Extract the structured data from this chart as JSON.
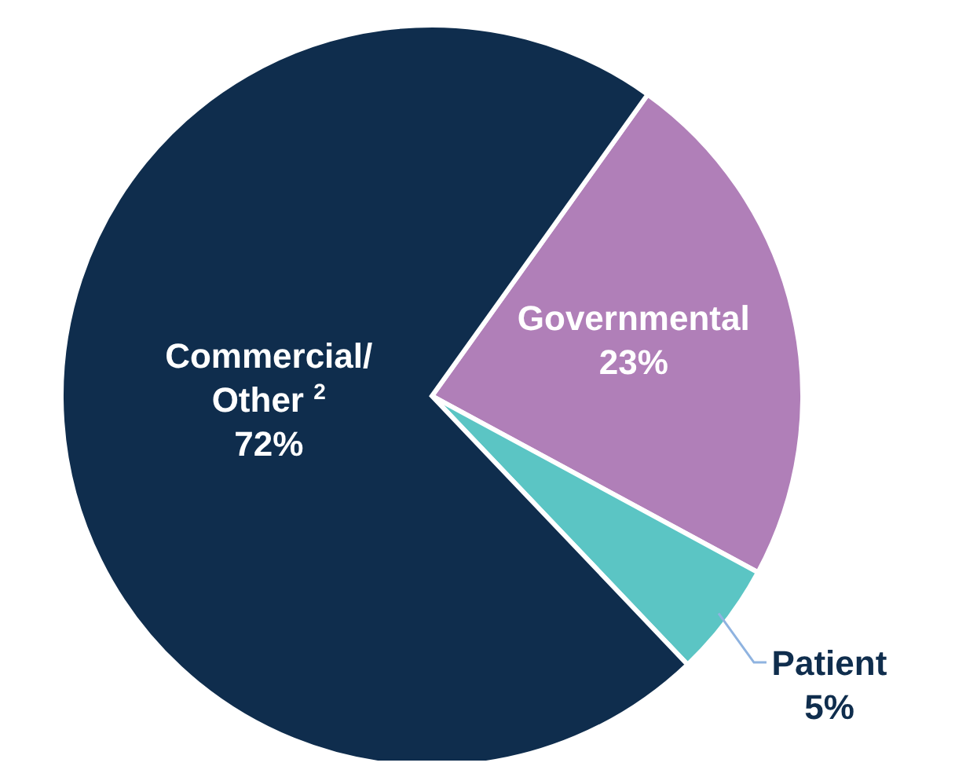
{
  "chart_data": {
    "type": "pie",
    "categories": [
      "Governmental",
      "Patient",
      "Commercial/ Other $^{2}$"
    ],
    "values": [
      23,
      5,
      72
    ],
    "colors": [
      "#b07fb8",
      "#5bc5c4",
      "#0f2d4d"
    ],
    "value_labels": [
      "23%",
      "5%",
      "72%"
    ]
  }
}
